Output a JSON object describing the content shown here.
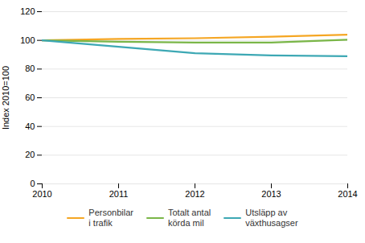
{
  "chart_data": {
    "type": "line",
    "ylabel": "Index 2010=100",
    "x": [
      2010,
      2011,
      2012,
      2013,
      2014
    ],
    "series": [
      {
        "name": "Personbilar\ni trafik",
        "color": "#F5A623",
        "values": [
          100,
          101,
          101.5,
          102.5,
          104
        ]
      },
      {
        "name": "Totalt antal\nkörda mil",
        "color": "#7AB648",
        "values": [
          100,
          99,
          98.5,
          98.5,
          100.5
        ]
      },
      {
        "name": "Utsläpp av\nväxthusagser",
        "color": "#3DA8B4",
        "values": [
          100,
          95.5,
          91,
          89.5,
          89
        ]
      }
    ],
    "xlim": [
      2010,
      2014
    ],
    "xticks": [
      2010,
      2011,
      2012,
      2013,
      2014
    ],
    "ylim": [
      0,
      120
    ],
    "yticks": [
      0,
      20,
      40,
      60,
      80,
      100,
      120
    ],
    "grid": true,
    "legend": "bottom"
  }
}
